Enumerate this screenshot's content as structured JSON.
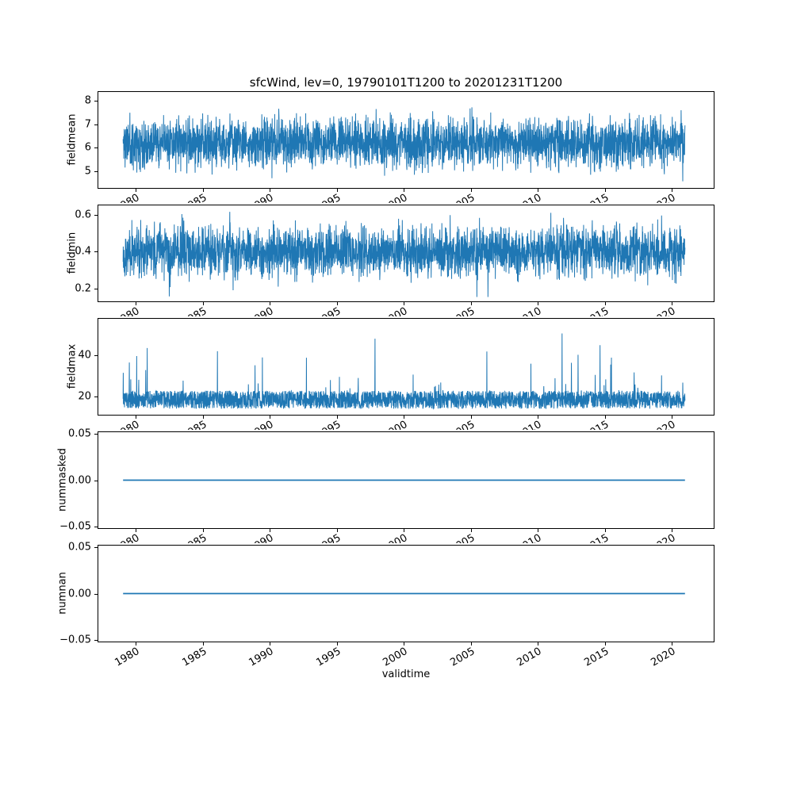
{
  "figure": {
    "title": "sfcWind, lev=0, 19790101T1200 to 20201231T1200",
    "xlabel": "validtime",
    "line_color": "#1f77b4",
    "background_color": "#ffffff",
    "text_color": "#000000",
    "xticks": [
      1980,
      1985,
      1990,
      1995,
      2000,
      2005,
      2010,
      2015,
      2020
    ],
    "xtick_labels": [
      "1980",
      "1985",
      "1990",
      "1995",
      "2000",
      "2005",
      "2010",
      "2015",
      "2020"
    ]
  },
  "chart_data": [
    {
      "type": "line",
      "ylabel": "fieldmean",
      "x_start": 1979.0,
      "x_end": 2021.05,
      "xlim": [
        1977.15,
        2023.2
      ],
      "ylim": [
        4.25,
        8.4
      ],
      "yticks": [
        5,
        6,
        7,
        8
      ],
      "ytick_labels": [
        "5",
        "6",
        "7",
        "8"
      ],
      "xticks": [
        1980,
        1985,
        1990,
        1995,
        2000,
        2005,
        2010,
        2015,
        2020
      ],
      "series": [
        {
          "name": "fieldmean",
          "style": "noise",
          "mean": 6.2,
          "spread": 0.78,
          "min": 4.5,
          "max": 8.15,
          "points": 3050,
          "seed": 11
        }
      ]
    },
    {
      "type": "line",
      "ylabel": "fieldmin",
      "x_start": 1979.0,
      "x_end": 2021.05,
      "xlim": [
        1977.15,
        2023.2
      ],
      "ylim": [
        0.126,
        0.654
      ],
      "yticks": [
        0.2,
        0.4,
        0.6
      ],
      "ytick_labels": [
        "0.2",
        "0.4",
        "0.6"
      ],
      "xticks": [
        1980,
        1985,
        1990,
        1995,
        2000,
        2005,
        2010,
        2015,
        2020
      ],
      "series": [
        {
          "name": "fieldmin",
          "style": "noise",
          "mean": 0.4,
          "spread": 0.1,
          "min": 0.15,
          "max": 0.63,
          "points": 3050,
          "seed": 22
        }
      ]
    },
    {
      "type": "line",
      "ylabel": "fieldmax",
      "x_start": 1979.0,
      "x_end": 2021.05,
      "xlim": [
        1977.15,
        2023.2
      ],
      "ylim": [
        10.5,
        58.5
      ],
      "yticks": [
        20,
        40
      ],
      "ytick_labels": [
        "20",
        "40"
      ],
      "xticks": [
        1980,
        1985,
        1990,
        1995,
        2000,
        2005,
        2010,
        2015,
        2020
      ],
      "series": [
        {
          "name": "fieldmax",
          "style": "spiky",
          "base": 13.5,
          "band": 9,
          "spike_prob": 0.02,
          "spike_max": 34,
          "max": 56,
          "points": 3050,
          "seed": 33
        }
      ]
    },
    {
      "type": "line",
      "ylabel": "nummasked",
      "x_start": 1979.0,
      "x_end": 2021.05,
      "xlim": [
        1977.15,
        2023.2
      ],
      "ylim": [
        -0.0525,
        0.0525
      ],
      "yticks": [
        -0.05,
        0.0,
        0.05
      ],
      "ytick_labels": [
        "−0.05",
        "0.00",
        "0.05"
      ],
      "xticks": [
        1980,
        1985,
        1990,
        1995,
        2000,
        2005,
        2010,
        2015,
        2020
      ],
      "series": [
        {
          "name": "nummasked",
          "style": "constant",
          "value": 0
        }
      ]
    },
    {
      "type": "line",
      "ylabel": "numnan",
      "x_start": 1979.0,
      "x_end": 2021.05,
      "xlim": [
        1977.15,
        2023.2
      ],
      "ylim": [
        -0.0525,
        0.0525
      ],
      "yticks": [
        -0.05,
        0.0,
        0.05
      ],
      "ytick_labels": [
        "−0.05",
        "0.00",
        "0.05"
      ],
      "xticks": [
        1980,
        1985,
        1990,
        1995,
        2000,
        2005,
        2010,
        2015,
        2020
      ],
      "series": [
        {
          "name": "numnan",
          "style": "constant",
          "value": 0
        }
      ]
    }
  ]
}
